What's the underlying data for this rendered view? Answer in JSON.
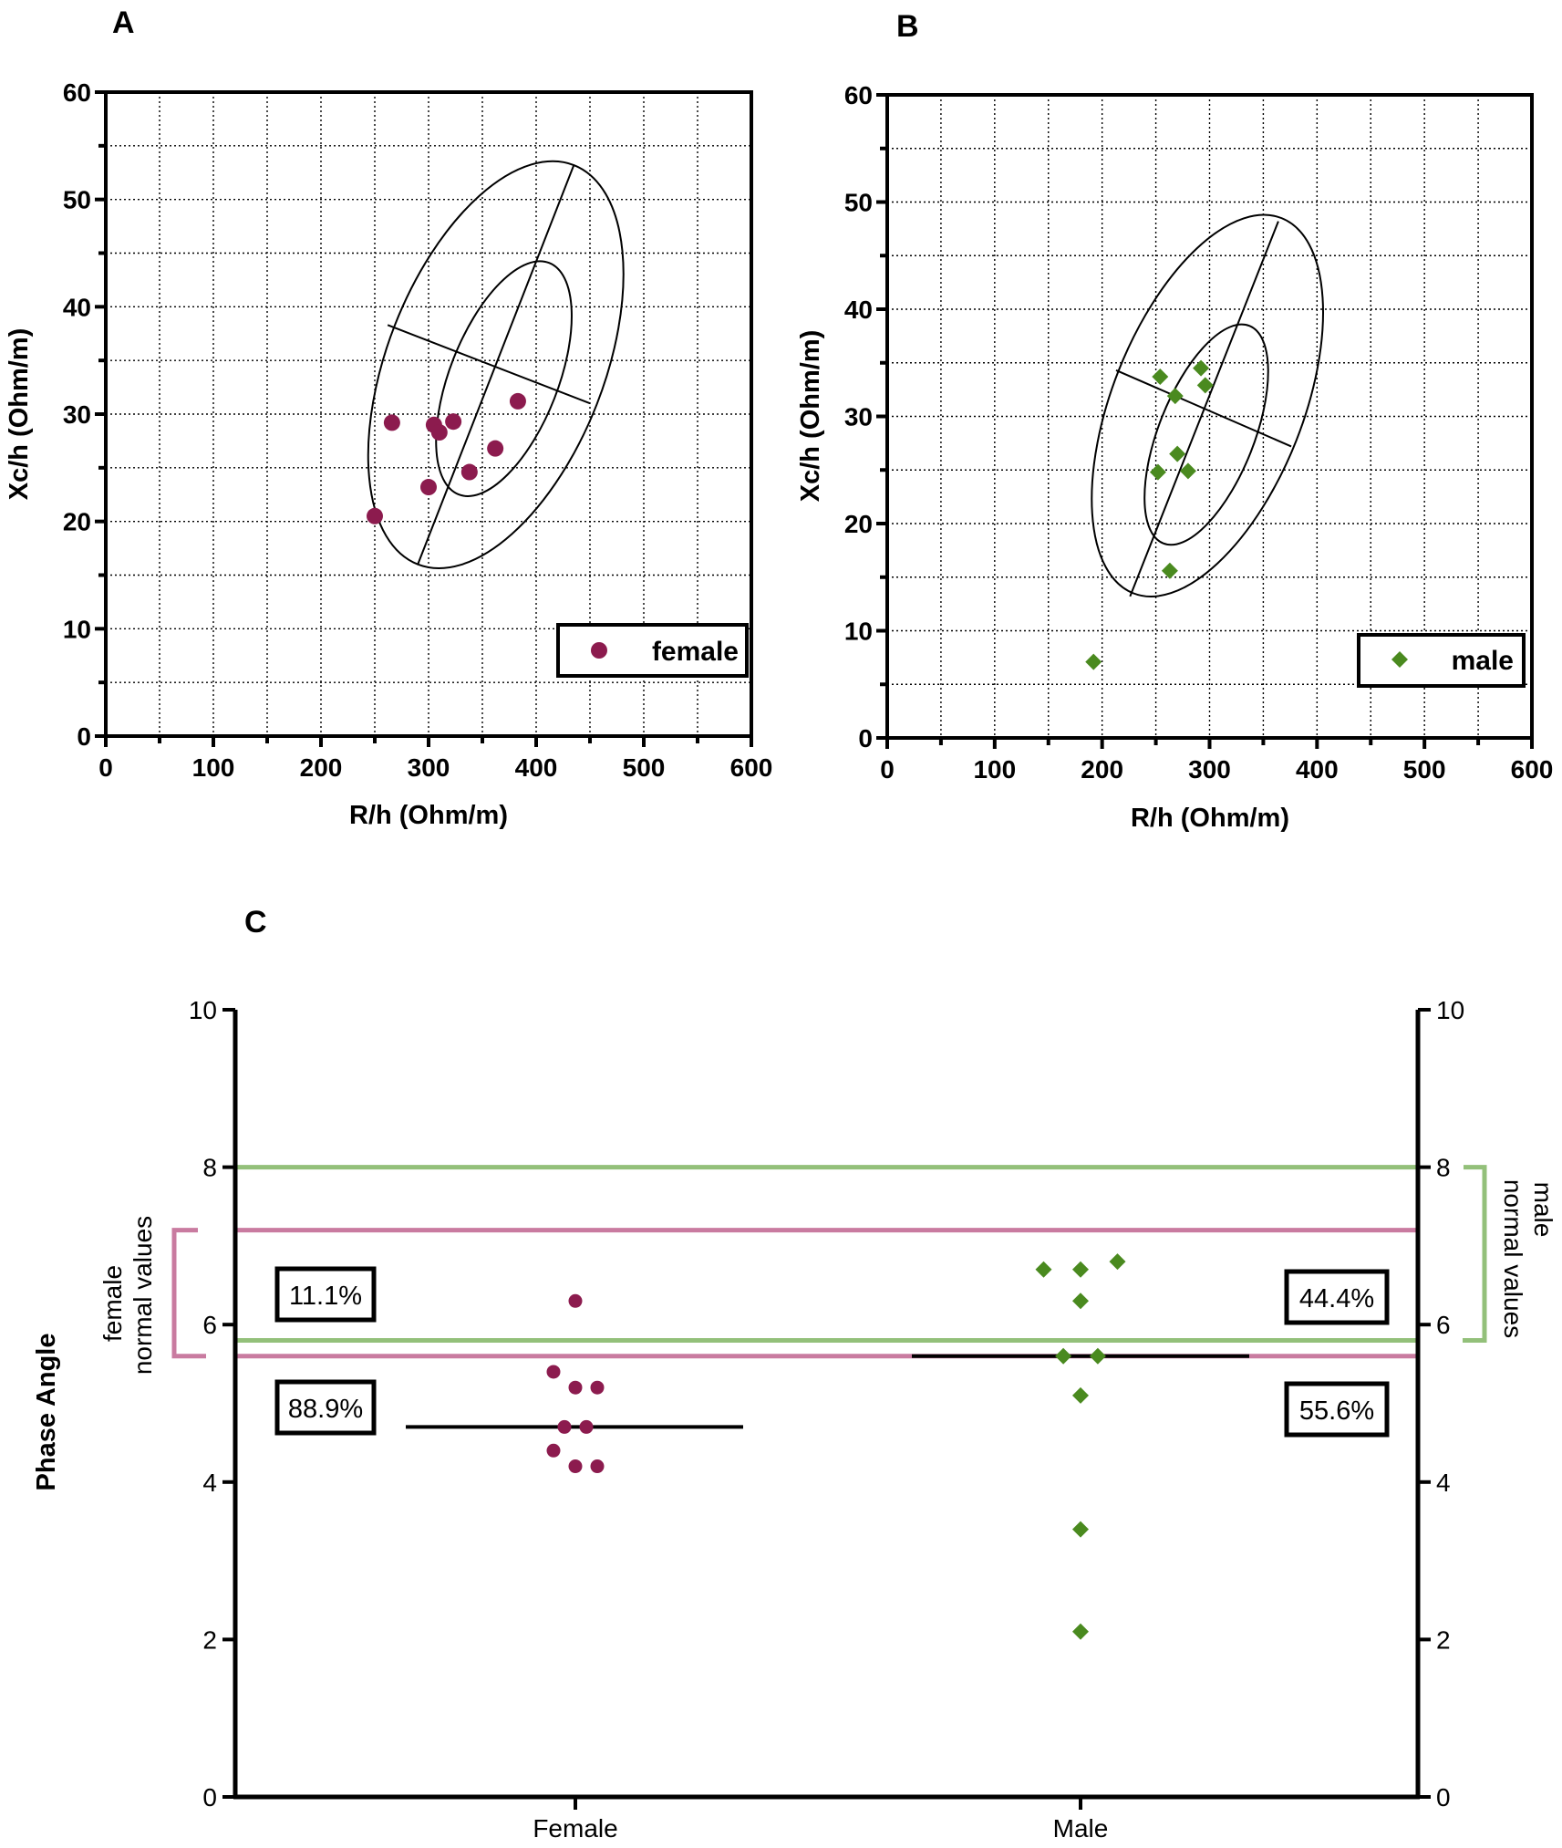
{
  "figure": {
    "panel_labels": [
      "A",
      "B",
      "C"
    ],
    "colors": {
      "female": "#8c1b4e",
      "male": "#4a8a1f",
      "female_line": "#c97ba0",
      "male_line": "#93c07a",
      "grid": "#000000"
    }
  },
  "chart_data": [
    {
      "id": "A",
      "type": "scatter",
      "title": "A",
      "xlabel": "R/h (Ohm/m)",
      "ylabel": "Xc/h (Ohm/m)",
      "xlim": [
        0,
        600
      ],
      "ylim": [
        0,
        60
      ],
      "xticks": [
        0,
        100,
        200,
        300,
        400,
        500,
        600
      ],
      "yticks": [
        0,
        10,
        20,
        30,
        40,
        50,
        60
      ],
      "grid": true,
      "legend": {
        "label": "female",
        "placement": "bottom-right"
      },
      "marker": "circle",
      "color": "#8c1b4e",
      "series": [
        {
          "name": "female",
          "x": [
            250,
            266,
            305,
            310,
            323,
            300,
            338,
            362,
            383
          ],
          "y": [
            20.5,
            29.2,
            29.0,
            28.3,
            29.3,
            23.2,
            24.6,
            26.8,
            31.2
          ]
        }
      ],
      "tolerance_ellipses": [
        {
          "level": "outer",
          "center": [
            362.5,
            34.6
          ],
          "semi_major": 19.7,
          "semi_minor": 82,
          "angle_deg": 65
        },
        {
          "level": "inner",
          "center": [
            370,
            33.3
          ],
          "semi_major": 10.2,
          "semi_minor": 47,
          "angle_deg": 65
        }
      ],
      "ellipse_axes": [
        {
          "from": [
            290,
            16
          ],
          "to": [
            435,
            53.2
          ]
        },
        {
          "from": [
            262,
            38.3
          ],
          "to": [
            450,
            31
          ]
        }
      ]
    },
    {
      "id": "B",
      "type": "scatter",
      "title": "B",
      "xlabel": "R/h (Ohm/m)",
      "ylabel": "Xc/h (Ohm/m)",
      "xlim": [
        0,
        600
      ],
      "ylim": [
        0,
        60
      ],
      "xticks": [
        0,
        100,
        200,
        300,
        400,
        500,
        600
      ],
      "yticks": [
        0,
        10,
        20,
        30,
        40,
        50,
        60
      ],
      "grid": true,
      "legend": {
        "label": "male",
        "placement": "bottom-right"
      },
      "marker": "diamond",
      "color": "#4a8a1f",
      "series": [
        {
          "name": "male",
          "x": [
            192,
            252,
            254,
            263,
            268,
            270,
            280,
            292,
            296
          ],
          "y": [
            7.1,
            24.8,
            33.7,
            15.6,
            31.9,
            26.5,
            24.9,
            34.5,
            32.9
          ]
        }
      ],
      "tolerance_ellipses": [
        {
          "level": "outer",
          "center": [
            298,
            31
          ],
          "semi_major": 19.3,
          "semi_minor": 78,
          "angle_deg": 65
        },
        {
          "level": "inner",
          "center": [
            297,
            28.3
          ],
          "semi_major": 9.2,
          "semi_minor": 40,
          "angle_deg": 65
        }
      ],
      "ellipse_axes": [
        {
          "from": [
            226,
            13.2
          ],
          "to": [
            364,
            48.2
          ]
        },
        {
          "from": [
            213,
            34.3
          ],
          "to": [
            376,
            27.2
          ]
        }
      ]
    },
    {
      "id": "C",
      "type": "scatter",
      "title": "C",
      "ylabel": "Phase Angle",
      "categories": [
        "Female",
        "Male"
      ],
      "ylim": [
        0,
        10
      ],
      "yticks": [
        0,
        2,
        4,
        6,
        8,
        10
      ],
      "series": [
        {
          "name": "Female",
          "marker": "circle",
          "color": "#8c1b4e",
          "values": [
            6.3,
            5.4,
            5.2,
            5.2,
            4.7,
            4.7,
            4.4,
            4.2,
            4.2
          ],
          "offsets": [
            0,
            -1,
            0,
            1,
            -0.5,
            0.5,
            -1,
            0,
            1
          ],
          "median": 4.7
        },
        {
          "name": "Male",
          "marker": "diamond",
          "color": "#4a8a1f",
          "values": [
            6.8,
            6.7,
            6.7,
            6.3,
            5.6,
            5.6,
            5.1,
            3.4,
            2.1
          ],
          "offsets": [
            1.5,
            -1.5,
            0,
            0,
            -0.7,
            0.7,
            0,
            0,
            0
          ],
          "median": 5.6
        }
      ],
      "reference_lines": [
        {
          "group": "male",
          "y": 8.0,
          "color": "#93c07a"
        },
        {
          "group": "female",
          "y": 7.2,
          "color": "#c97ba0"
        },
        {
          "group": "male",
          "y": 5.8,
          "color": "#93c07a"
        },
        {
          "group": "female",
          "y": 5.6,
          "color": "#c97ba0"
        }
      ],
      "normal_ranges": {
        "female": {
          "range": [
            5.6,
            7.2
          ],
          "label_line1": "female",
          "label_line2": "normal values",
          "side": "left"
        },
        "male": {
          "range": [
            5.8,
            8.0
          ],
          "label_line1": "male",
          "label_line2": "normal values",
          "side": "right"
        }
      },
      "percentages": {
        "female_within": "11.1%",
        "female_below": "88.9%",
        "male_within": "44.4%",
        "male_below": "55.6%"
      }
    }
  ]
}
